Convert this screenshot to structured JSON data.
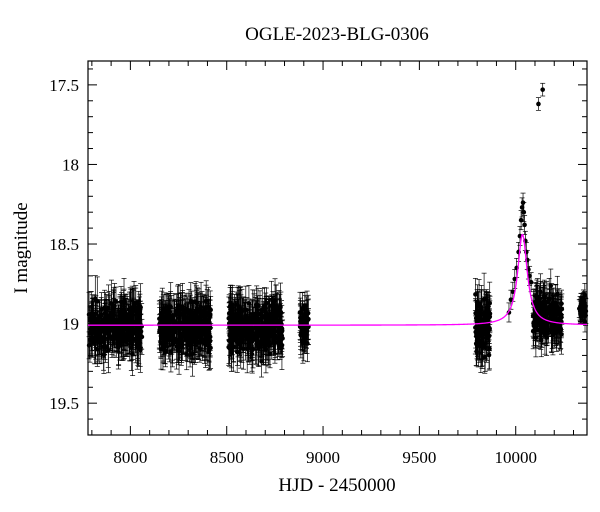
{
  "chart_data": {
    "type": "scatter",
    "title": "OGLE-2023-BLG-0306",
    "xlabel": "HJD - 2450000",
    "ylabel": "I magnitude",
    "xlim": [
      7780,
      10370
    ],
    "ylim": [
      19.7,
      17.35
    ],
    "y_axis_inverted": true,
    "x_ticks": [
      8000,
      8500,
      9000,
      9500,
      10000
    ],
    "y_ticks": [
      17.5,
      18,
      18.5,
      19,
      19.5
    ],
    "grid": false,
    "legend": null,
    "colors": {
      "points": "#000000",
      "model": "#ff00ff",
      "axes": "#000000"
    },
    "baseline_magnitude": 19.01,
    "observing_seasons": [
      {
        "x_start": 7780,
        "x_end": 8060,
        "median_mag": 19.02,
        "scatter_mag": 0.14,
        "error_mag": 0.12
      },
      {
        "x_start": 8150,
        "x_end": 8420,
        "median_mag": 19.02,
        "scatter_mag": 0.14,
        "error_mag": 0.12
      },
      {
        "x_start": 8510,
        "x_end": 8790,
        "median_mag": 19.03,
        "scatter_mag": 0.14,
        "error_mag": 0.12
      },
      {
        "x_start": 8880,
        "x_end": 8925,
        "median_mag": 19.02,
        "scatter_mag": 0.11,
        "error_mag": 0.11
      },
      {
        "x_start": 9790,
        "x_end": 9870,
        "median_mag": 19.02,
        "scatter_mag": 0.17,
        "error_mag": 0.13
      },
      {
        "x_start": 10090,
        "x_end": 10240,
        "median_mag": 18.96,
        "scatter_mag": 0.13,
        "error_mag": 0.11
      },
      {
        "x_start": 10330,
        "x_end": 10370,
        "median_mag": 18.9,
        "scatter_mag": 0.06,
        "error_mag": 0.06
      }
    ],
    "event_points": [
      {
        "x": 9965,
        "y": 18.93
      },
      {
        "x": 9975,
        "y": 18.85
      },
      {
        "x": 9985,
        "y": 18.8
      },
      {
        "x": 9995,
        "y": 18.72
      },
      {
        "x": 10005,
        "y": 18.65
      },
      {
        "x": 10015,
        "y": 18.55
      },
      {
        "x": 10022,
        "y": 18.45
      },
      {
        "x": 10028,
        "y": 18.35
      },
      {
        "x": 10033,
        "y": 18.27
      },
      {
        "x": 10038,
        "y": 18.24
      },
      {
        "x": 10042,
        "y": 18.3
      },
      {
        "x": 10046,
        "y": 18.38
      },
      {
        "x": 10050,
        "y": 18.48
      },
      {
        "x": 10055,
        "y": 18.55
      },
      {
        "x": 10060,
        "y": 18.6
      },
      {
        "x": 10066,
        "y": 18.66
      },
      {
        "x": 10072,
        "y": 18.7
      },
      {
        "x": 10080,
        "y": 18.74
      }
    ],
    "outlier_points": [
      {
        "x": 10118,
        "y": 17.62
      },
      {
        "x": 10140,
        "y": 17.53
      }
    ],
    "model_curve": {
      "baseline": 19.01,
      "peak_x": 10035,
      "peak_magnitude": 18.44,
      "width_days": 30
    }
  }
}
